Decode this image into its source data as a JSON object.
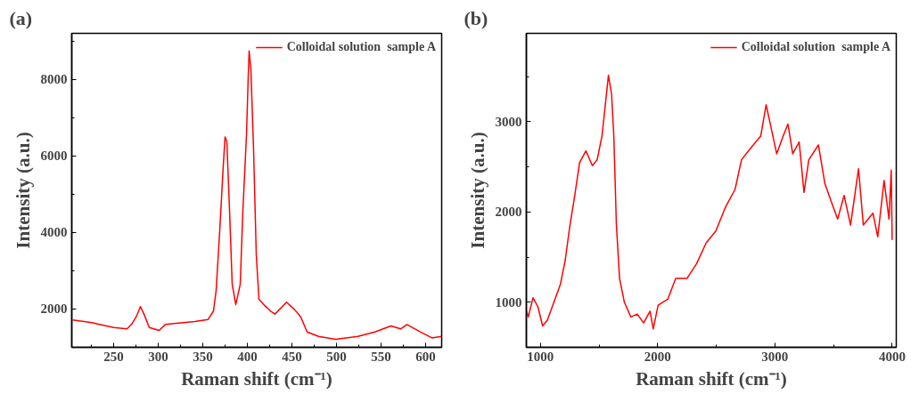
{
  "chart_data": [
    {
      "type": "line",
      "title": "(a)",
      "xlabel": "Raman shift (cm⁻¹)",
      "ylabel": "Intensity (a.u.)",
      "xlim": [
        203,
        618
      ],
      "ylim": [
        1000,
        9200
      ],
      "xticks": [
        250,
        300,
        350,
        400,
        450,
        500,
        550,
        600
      ],
      "yticks": [
        2000,
        4000,
        6000,
        8000
      ],
      "grid": false,
      "legend": "top right",
      "x": [
        204,
        224,
        250,
        265,
        270,
        276,
        280,
        284,
        290,
        301,
        308,
        323,
        341,
        356,
        362,
        365,
        369,
        373,
        375,
        377,
        380,
        383,
        387,
        392,
        395,
        399,
        401,
        402,
        404,
        407,
        410,
        413,
        419,
        426,
        431,
        444,
        453,
        460,
        467,
        480,
        499,
        524,
        543,
        561,
        572,
        579,
        594,
        607,
        618
      ],
      "series": [
        {
          "name": "Colloidal solution  sample A",
          "color": "#ff0000",
          "values": [
            1712,
            1650,
            1518,
            1480,
            1596,
            1829,
            2062,
            1868,
            1518,
            1440,
            1596,
            1635,
            1674,
            1728,
            1946,
            2490,
            4044,
            5753,
            6491,
            6374,
            4588,
            2645,
            2117,
            2645,
            4588,
            6530,
            8084,
            8744,
            8239,
            6141,
            3422,
            2256,
            2101,
            1946,
            1868,
            2179,
            1984,
            1790,
            1402,
            1285,
            1207,
            1285,
            1402,
            1557,
            1480,
            1596,
            1402,
            1246,
            1285
          ]
        }
      ]
    },
    {
      "type": "line",
      "title": "(b)",
      "xlabel": "Raman shift (cm⁻¹)",
      "ylabel": "Intensity (a.u.)",
      "xlim": [
        880,
        4035
      ],
      "ylim": [
        500,
        3980
      ],
      "xticks": [
        1000,
        2000,
        3000,
        4000
      ],
      "yticks": [
        1000,
        2000,
        3000
      ],
      "grid": false,
      "legend": "top right",
      "x": [
        882,
        896,
        937,
        978,
        1019,
        1060,
        1115,
        1170,
        1211,
        1252,
        1293,
        1334,
        1388,
        1443,
        1484,
        1525,
        1552,
        1580,
        1607,
        1626,
        1648,
        1675,
        1716,
        1771,
        1826,
        1880,
        1935,
        1962,
        2004,
        2086,
        2154,
        2250,
        2332,
        2414,
        2496,
        2578,
        2660,
        2715,
        2795,
        2879,
        2925,
        2961,
        3015,
        3070,
        3111,
        3152,
        3207,
        3248,
        3289,
        3371,
        3426,
        3480,
        3535,
        3590,
        3645,
        3713,
        3754,
        3836,
        3877,
        3931,
        3973,
        3992,
        4000
      ],
      "series": [
        {
          "name": "Colloidal solution  sample A",
          "color": "#ff0000",
          "values": [
            901,
            836,
            1049,
            951,
            737,
            803,
            1000,
            1197,
            1461,
            1855,
            2184,
            2546,
            2678,
            2513,
            2579,
            2842,
            3171,
            3516,
            3303,
            2842,
            1855,
            1263,
            1000,
            836,
            868,
            770,
            901,
            704,
            967,
            1033,
            1263,
            1263,
            1428,
            1658,
            1789,
            2053,
            2250,
            2579,
            2711,
            2842,
            3188,
            2974,
            2645,
            2842,
            2974,
            2645,
            2776,
            2217,
            2579,
            2743,
            2316,
            2118,
            1921,
            2184,
            1855,
            2480,
            1855,
            1987,
            1724,
            2349,
            1921,
            2464,
            1691
          ]
        }
      ]
    }
  ]
}
